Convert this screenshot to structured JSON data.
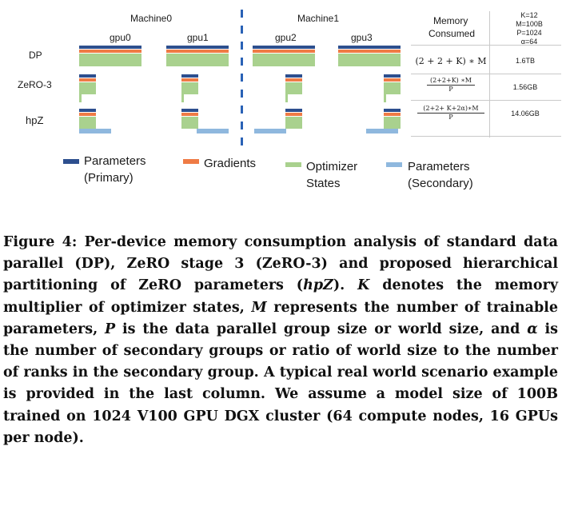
{
  "diagram": {
    "machines": [
      "Machine0",
      "Machine1"
    ],
    "gpus": [
      "gpu0",
      "gpu1",
      "gpu2",
      "gpu3"
    ],
    "rows": [
      "DP",
      "ZeRO-3",
      "hpZ"
    ],
    "table": {
      "header": [
        "Memory",
        "Consumed"
      ],
      "params": [
        "K=12",
        "M=100B",
        "P=1024",
        "α=64"
      ],
      "formulas": {
        "dp": "(2 + 2 + K) ∗ M",
        "zero3_num": "(2+2+K) ∗M",
        "zero3_den": "P",
        "hpz_num": "(2+2+ K+2α)∗M",
        "hpz_den": "P"
      },
      "values": [
        "1.6TB",
        "1.56GB",
        "14.06GB"
      ]
    },
    "legend": {
      "primary": [
        "Parameters",
        "(Primary)"
      ],
      "gradients": "Gradients",
      "optimizer": [
        "Optimizer",
        "States"
      ],
      "secondary": [
        "Parameters",
        "(Secondary)"
      ]
    },
    "colors": {
      "parameters_primary": "#2d4f8e",
      "gradients": "#ef7b45",
      "optimizer_states": "#a9d18e",
      "parameters_secondary": "#8fb8de",
      "divider": "#2a62b6"
    }
  },
  "caption": {
    "label": "Figure 4:",
    "t1": " Per-device memory consumption analysis of standard data parallel (DP), ZeRO stage 3 (ZeRO-3) and proposed hierarchical partitioning of ZeRO parameters (",
    "hpz": "hpZ",
    "t2": "). ",
    "k": "K",
    "t3": " denotes the memory multiplier of optimizer states, ",
    "m": "M",
    "t4": " represents the number of trainable parameters, ",
    "p": "P",
    "t5": " is the data parallel group size or world size, and ",
    "alpha": "α",
    "t6": " is the number of secondary groups or ratio of world size to the number of ranks in the secondary group. A typical real world scenario example is provided in the last column. We assume a model size of 100B trained on 1024 V100 GPU DGX cluster (64 compute nodes, 16 GPUs per node)."
  }
}
